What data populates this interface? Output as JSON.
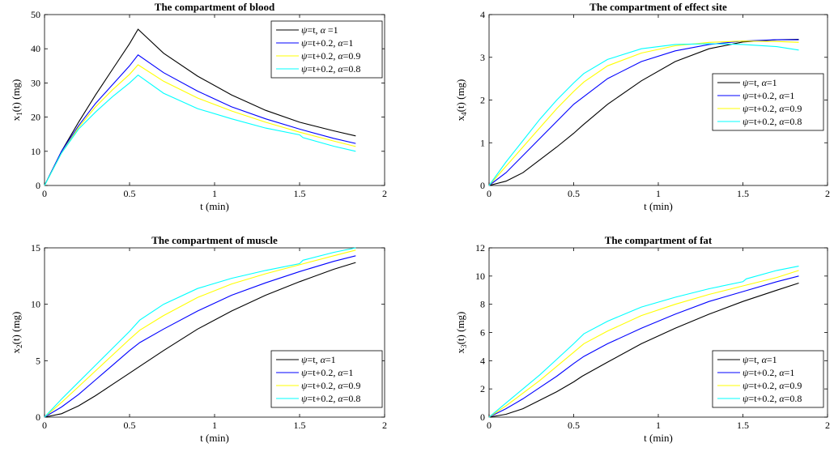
{
  "chart_data": [
    {
      "type": "line",
      "title": "The compartment of blood",
      "xlabel": "t (min)",
      "ylabel": {
        "main": "x",
        "sub": "1",
        "rest": "(t) (mg)"
      },
      "xlim": [
        0,
        2
      ],
      "ylim": [
        0,
        50
      ],
      "xticks": [
        0,
        0.5,
        1,
        1.5,
        2
      ],
      "yticks": [
        0,
        10,
        20,
        30,
        40,
        50
      ],
      "legend_position": "top-right",
      "series": [
        {
          "name": "ψ=t, α =1",
          "color": "#000000",
          "x": [
            0,
            0.1,
            0.2,
            0.3,
            0.4,
            0.5,
            0.55,
            0.7,
            0.9,
            1.1,
            1.3,
            1.5,
            1.7,
            1.83
          ],
          "y": [
            0,
            10,
            18.5,
            26.5,
            34,
            41.5,
            45.7,
            38.7,
            32,
            26.5,
            22,
            18.5,
            16,
            14.5
          ]
        },
        {
          "name": "ψ=t+0.2, α=1",
          "color": "#0000ff",
          "x": [
            0,
            0.1,
            0.2,
            0.3,
            0.4,
            0.5,
            0.55,
            0.7,
            0.9,
            1.1,
            1.3,
            1.5,
            1.7,
            1.83
          ],
          "y": [
            0,
            10,
            17.5,
            24,
            29.5,
            35,
            38.2,
            33,
            27.6,
            23,
            19.5,
            16.5,
            13.8,
            12.3
          ]
        },
        {
          "name": "ψ=t+0.2, α=0.9",
          "color": "#ffff00",
          "x": [
            0,
            0.1,
            0.2,
            0.3,
            0.4,
            0.5,
            0.55,
            0.7,
            0.9,
            1.1,
            1.3,
            1.5,
            1.7,
            1.83
          ],
          "y": [
            0,
            9.5,
            17,
            23,
            28,
            32.5,
            35.3,
            30.5,
            25.6,
            21.8,
            18.5,
            15.6,
            13,
            11.4
          ]
        },
        {
          "name": "ψ=t+0.2, α=0.8",
          "color": "#00ffff",
          "x": [
            0,
            0.1,
            0.2,
            0.3,
            0.4,
            0.5,
            0.55,
            0.7,
            0.9,
            1.1,
            1.3,
            1.5,
            1.52,
            1.7,
            1.83
          ],
          "y": [
            0,
            9.5,
            16.5,
            21.5,
            26,
            30,
            32.3,
            27,
            22.5,
            19.5,
            16.8,
            14.8,
            14,
            11.5,
            10
          ]
        }
      ]
    },
    {
      "type": "line",
      "title": "The compartment of effect site",
      "xlabel": "t (min)",
      "ylabel": {
        "main": "x",
        "sub": "4",
        "rest": "(t) (mg)"
      },
      "xlim": [
        0,
        2
      ],
      "ylim": [
        0,
        4
      ],
      "xticks": [
        0,
        0.5,
        1,
        1.5,
        2
      ],
      "yticks": [
        0,
        1,
        2,
        3,
        4
      ],
      "legend_position": "right",
      "series": [
        {
          "name": "ψ=t, α=1",
          "color": "#000000",
          "x": [
            0,
            0.1,
            0.2,
            0.3,
            0.4,
            0.5,
            0.55,
            0.7,
            0.9,
            1.1,
            1.3,
            1.5,
            1.7,
            1.83
          ],
          "y": [
            0,
            0.1,
            0.3,
            0.6,
            0.9,
            1.22,
            1.4,
            1.9,
            2.45,
            2.9,
            3.2,
            3.36,
            3.41,
            3.42
          ]
        },
        {
          "name": "ψ=t+0.2, α=1",
          "color": "#0000ff",
          "x": [
            0,
            0.1,
            0.2,
            0.3,
            0.4,
            0.5,
            0.56,
            0.7,
            0.9,
            1.1,
            1.3,
            1.5,
            1.7,
            1.83
          ],
          "y": [
            0,
            0.3,
            0.7,
            1.1,
            1.5,
            1.9,
            2.08,
            2.5,
            2.9,
            3.15,
            3.3,
            3.38,
            3.41,
            3.41
          ]
        },
        {
          "name": "ψ=t+0.2, α=0.9",
          "color": "#ffff00",
          "x": [
            0,
            0.1,
            0.2,
            0.3,
            0.4,
            0.5,
            0.56,
            0.7,
            0.9,
            1.1,
            1.3,
            1.5,
            1.7,
            1.83
          ],
          "y": [
            0,
            0.45,
            0.9,
            1.35,
            1.8,
            2.2,
            2.42,
            2.8,
            3.1,
            3.27,
            3.35,
            3.38,
            3.37,
            3.35
          ]
        },
        {
          "name": "ψ=t+0.2, α=0.8",
          "color": "#00ffff",
          "x": [
            0,
            0.1,
            0.2,
            0.3,
            0.4,
            0.5,
            0.56,
            0.7,
            0.9,
            1.1,
            1.3,
            1.5,
            1.7,
            1.83
          ],
          "y": [
            0,
            0.55,
            1.05,
            1.55,
            2.0,
            2.4,
            2.62,
            2.95,
            3.2,
            3.3,
            3.32,
            3.3,
            3.25,
            3.17
          ]
        }
      ]
    },
    {
      "type": "line",
      "title": "The compartment of muscle",
      "xlabel": "t (min)",
      "ylabel": {
        "main": "x",
        "sub": "2",
        "rest": "(t) (mg)"
      },
      "xlim": [
        0,
        2
      ],
      "ylim": [
        0,
        15
      ],
      "xticks": [
        0,
        0.5,
        1,
        1.5,
        2
      ],
      "yticks": [
        0,
        5,
        10,
        15
      ],
      "legend_position": "bottom-right",
      "series": [
        {
          "name": "ψ=t, α=1",
          "color": "#000000",
          "x": [
            0,
            0.1,
            0.2,
            0.3,
            0.4,
            0.5,
            0.55,
            0.7,
            0.9,
            1.1,
            1.3,
            1.5,
            1.7,
            1.83
          ],
          "y": [
            0,
            0.3,
            1.0,
            1.9,
            2.9,
            3.9,
            4.4,
            5.9,
            7.8,
            9.4,
            10.8,
            12.0,
            13.1,
            13.7
          ]
        },
        {
          "name": "ψ=t+0.2, α=1",
          "color": "#0000ff",
          "x": [
            0,
            0.1,
            0.2,
            0.3,
            0.4,
            0.5,
            0.56,
            0.7,
            0.9,
            1.1,
            1.3,
            1.5,
            1.7,
            1.83
          ],
          "y": [
            0,
            0.9,
            2.0,
            3.3,
            4.6,
            5.9,
            6.6,
            7.8,
            9.4,
            10.8,
            11.9,
            12.9,
            13.8,
            14.3
          ]
        },
        {
          "name": "ψ=t+0.2, α=0.9",
          "color": "#ffff00",
          "x": [
            0,
            0.1,
            0.2,
            0.3,
            0.4,
            0.5,
            0.56,
            0.7,
            0.9,
            1.1,
            1.3,
            1.5,
            1.7,
            1.83
          ],
          "y": [
            0,
            1.3,
            2.7,
            4.1,
            5.5,
            6.9,
            7.7,
            9.0,
            10.6,
            11.8,
            12.7,
            13.5,
            14.3,
            14.8
          ]
        },
        {
          "name": "ψ=t+0.2, α=0.8",
          "color": "#00ffff",
          "x": [
            0,
            0.1,
            0.2,
            0.3,
            0.4,
            0.5,
            0.56,
            0.7,
            0.9,
            1.1,
            1.3,
            1.5,
            1.52,
            1.7,
            1.83
          ],
          "y": [
            0,
            1.6,
            3.1,
            4.6,
            6.1,
            7.6,
            8.6,
            10.0,
            11.4,
            12.3,
            13.0,
            13.6,
            13.9,
            14.6,
            15.0
          ]
        }
      ]
    },
    {
      "type": "line",
      "title": "The compartment of fat",
      "xlabel": "t (min)",
      "ylabel": {
        "main": "x",
        "sub": "3",
        "rest": "(t) (mg)"
      },
      "xlim": [
        0,
        2
      ],
      "ylim": [
        0,
        12
      ],
      "xticks": [
        0,
        0.5,
        1,
        1.5,
        2
      ],
      "yticks": [
        0,
        2,
        4,
        6,
        8,
        10,
        12
      ],
      "legend_position": "bottom-right",
      "series": [
        {
          "name": "ψ=t, α=1",
          "color": "#000000",
          "x": [
            0,
            0.1,
            0.2,
            0.3,
            0.4,
            0.5,
            0.55,
            0.7,
            0.9,
            1.1,
            1.3,
            1.5,
            1.7,
            1.83
          ],
          "y": [
            0,
            0.2,
            0.6,
            1.2,
            1.8,
            2.5,
            2.9,
            3.9,
            5.2,
            6.3,
            7.3,
            8.2,
            9.0,
            9.5
          ]
        },
        {
          "name": "ψ=t+0.2, α=1",
          "color": "#0000ff",
          "x": [
            0,
            0.1,
            0.2,
            0.3,
            0.4,
            0.5,
            0.56,
            0.7,
            0.9,
            1.1,
            1.3,
            1.5,
            1.7,
            1.83
          ],
          "y": [
            0,
            0.6,
            1.3,
            2.1,
            2.9,
            3.8,
            4.3,
            5.2,
            6.3,
            7.3,
            8.2,
            8.9,
            9.6,
            10.0
          ]
        },
        {
          "name": "ψ=t+0.2, α=0.9",
          "color": "#ffff00",
          "x": [
            0,
            0.1,
            0.2,
            0.3,
            0.4,
            0.5,
            0.56,
            0.7,
            0.9,
            1.1,
            1.3,
            1.5,
            1.7,
            1.83
          ],
          "y": [
            0,
            0.8,
            1.7,
            2.6,
            3.6,
            4.6,
            5.2,
            6.1,
            7.2,
            8.0,
            8.7,
            9.3,
            9.9,
            10.4
          ]
        },
        {
          "name": "ψ=t+0.2, α=0.8",
          "color": "#00ffff",
          "x": [
            0,
            0.1,
            0.2,
            0.3,
            0.4,
            0.5,
            0.56,
            0.7,
            0.9,
            1.1,
            1.3,
            1.5,
            1.52,
            1.7,
            1.83
          ],
          "y": [
            0,
            1.0,
            2.0,
            3.0,
            4.1,
            5.2,
            5.9,
            6.8,
            7.8,
            8.5,
            9.1,
            9.6,
            9.8,
            10.4,
            10.7
          ]
        }
      ]
    }
  ]
}
